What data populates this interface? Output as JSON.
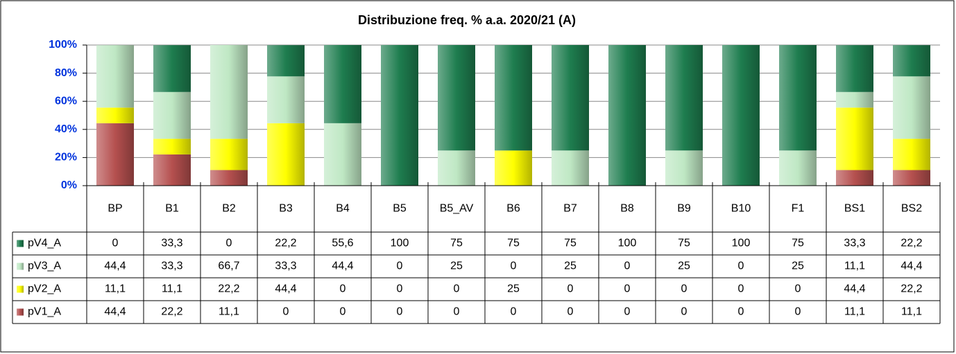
{
  "chart_data": {
    "type": "stacked_bar_100",
    "title": "Distribuzione freq. % a.a. 2020/21 (A)",
    "categories": [
      "BP",
      "B1",
      "B2",
      "B3",
      "B4",
      "B5",
      "B5_AV",
      "B6",
      "B7",
      "B8",
      "B9",
      "B10",
      "F1",
      "BS1",
      "BS2"
    ],
    "series": [
      {
        "name": "pV4_A",
        "color": "#1e7d4f",
        "values": [
          0,
          33.3,
          0,
          22.2,
          55.6,
          100,
          75,
          75,
          75,
          100,
          75,
          100,
          75,
          33.3,
          22.2
        ],
        "value_labels": [
          "0",
          "33,3",
          "0",
          "22,2",
          "55,6",
          "100",
          "75",
          "75",
          "75",
          "100",
          "75",
          "100",
          "75",
          "33,3",
          "22,2"
        ]
      },
      {
        "name": "pV3_A",
        "color": "#bfe8c4",
        "values": [
          44.4,
          33.3,
          66.7,
          33.3,
          44.4,
          0,
          25,
          0,
          25,
          0,
          25,
          0,
          25,
          11.1,
          44.4
        ],
        "value_labels": [
          "44,4",
          "33,3",
          "66,7",
          "33,3",
          "44,4",
          "0",
          "25",
          "0",
          "25",
          "0",
          "25",
          "0",
          "25",
          "11,1",
          "44,4"
        ]
      },
      {
        "name": "pV2_A",
        "color": "#ffff00",
        "values": [
          11.1,
          11.1,
          22.2,
          44.4,
          0,
          0,
          0,
          25,
          0,
          0,
          0,
          0,
          0,
          44.4,
          22.2
        ],
        "value_labels": [
          "11,1",
          "11,1",
          "22,2",
          "44,4",
          "0",
          "0",
          "0",
          "25",
          "0",
          "0",
          "0",
          "0",
          "0",
          "44,4",
          "22,2"
        ]
      },
      {
        "name": "pV1_A",
        "color": "#b5504f",
        "values": [
          44.4,
          22.2,
          11.1,
          0,
          0,
          0,
          0,
          0,
          0,
          0,
          0,
          0,
          0,
          11.1,
          11.1
        ],
        "value_labels": [
          "44,4",
          "22,2",
          "11,1",
          "0",
          "0",
          "0",
          "0",
          "0",
          "0",
          "0",
          "0",
          "0",
          "0",
          "11,1",
          "11,1"
        ]
      }
    ],
    "ylim": [
      0,
      100
    ],
    "yticks": [
      {
        "value": 0,
        "label": "0%"
      },
      {
        "value": 20,
        "label": "20%"
      },
      {
        "value": 40,
        "label": "40%"
      },
      {
        "value": 60,
        "label": "60%"
      },
      {
        "value": 80,
        "label": "80%"
      },
      {
        "value": 100,
        "label": "100%"
      }
    ],
    "grid": true
  }
}
